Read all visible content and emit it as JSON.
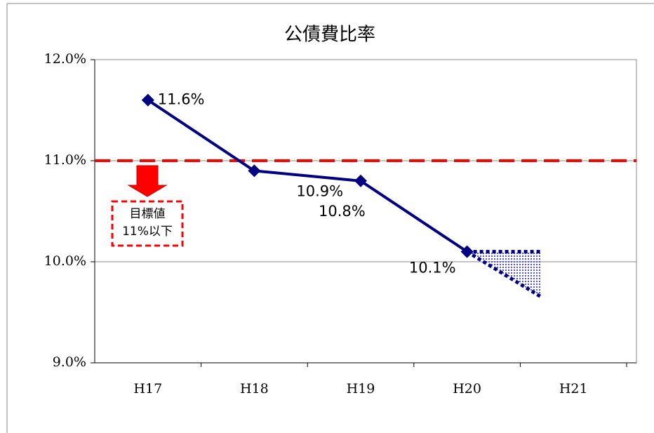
{
  "chart_data": {
    "type": "line",
    "title": "公債費比率",
    "categories": [
      "H17",
      "H18",
      "H19",
      "H20",
      "H21"
    ],
    "series": [
      {
        "color": "#000080",
        "values": [
          11.6,
          10.9,
          10.8,
          10.1,
          null
        ],
        "value_labels": [
          "11.6%",
          "10.9%",
          "10.8%",
          "10.1%",
          null
        ]
      },
      {
        "color": "#000080",
        "values": [
          null,
          null,
          null,
          10.1,
          10.1
        ]
      },
      {
        "color": "#000080",
        "values": [
          null,
          null,
          null,
          10.1,
          9.65
        ]
      }
    ],
    "ylim": [
      9,
      12
    ],
    "yticks": [
      {
        "value": 9,
        "label": "9.0%"
      },
      {
        "value": 10,
        "label": "10.0%"
      },
      {
        "value": 11,
        "label": "11.0%"
      },
      {
        "value": 12,
        "label": "12.0%"
      }
    ],
    "grid": true,
    "target": {
      "value": 11,
      "color": "#ff0000",
      "label_lines": [
        "目標値",
        "11%以下"
      ]
    }
  }
}
